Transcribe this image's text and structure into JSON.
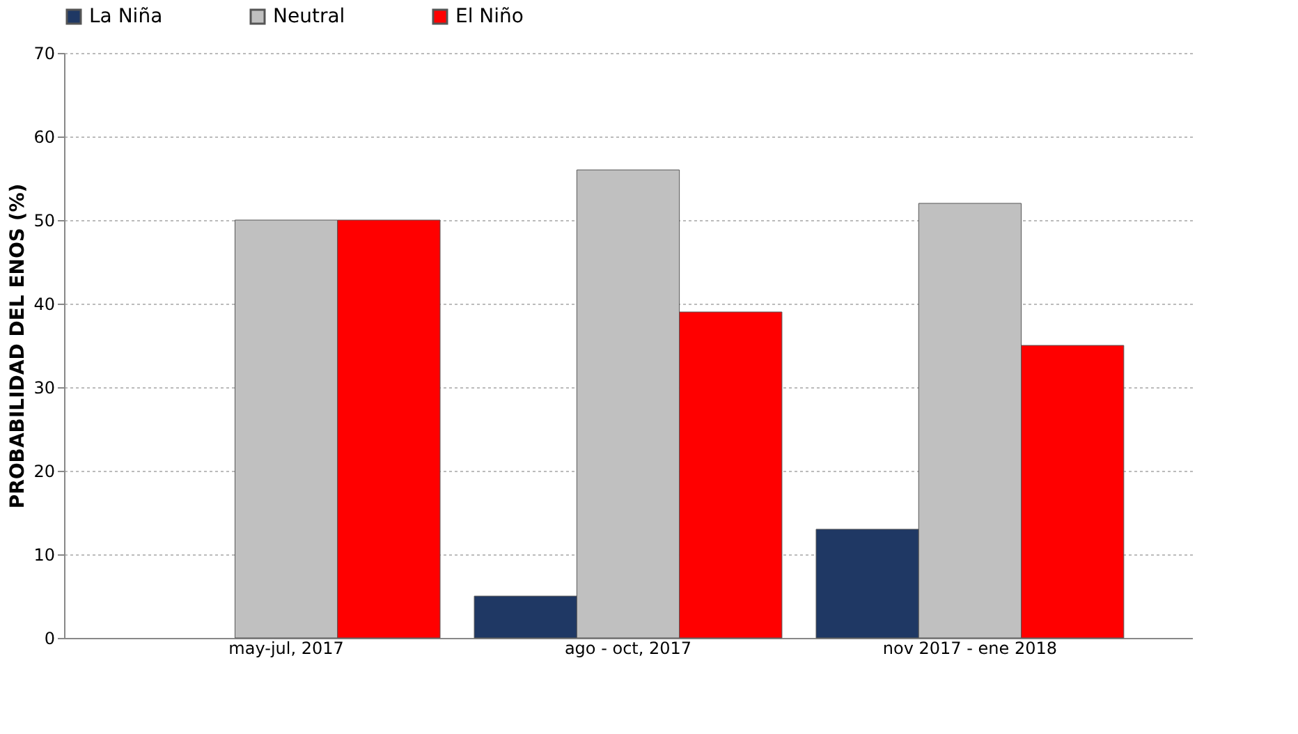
{
  "chart_data": {
    "type": "bar",
    "ylabel": "PROBABILIDAD DEL ENOS (%)",
    "categories": [
      "may-jul, 2017",
      "ago - oct, 2017",
      "nov 2017 - ene 2018"
    ],
    "series": [
      {
        "name": "La Niña",
        "color": "#1f3864",
        "values": [
          null,
          5,
          13
        ]
      },
      {
        "name": "Neutral",
        "color": "#c0c0c0",
        "values": [
          50,
          56,
          52
        ]
      },
      {
        "name": "El Niño",
        "color": "#ff0000",
        "values": [
          50,
          39,
          35
        ]
      }
    ],
    "ylim": [
      0,
      70
    ],
    "yticks": [
      0,
      10,
      20,
      30,
      40,
      50,
      60,
      70
    ],
    "grid": "y",
    "legend": "top"
  }
}
